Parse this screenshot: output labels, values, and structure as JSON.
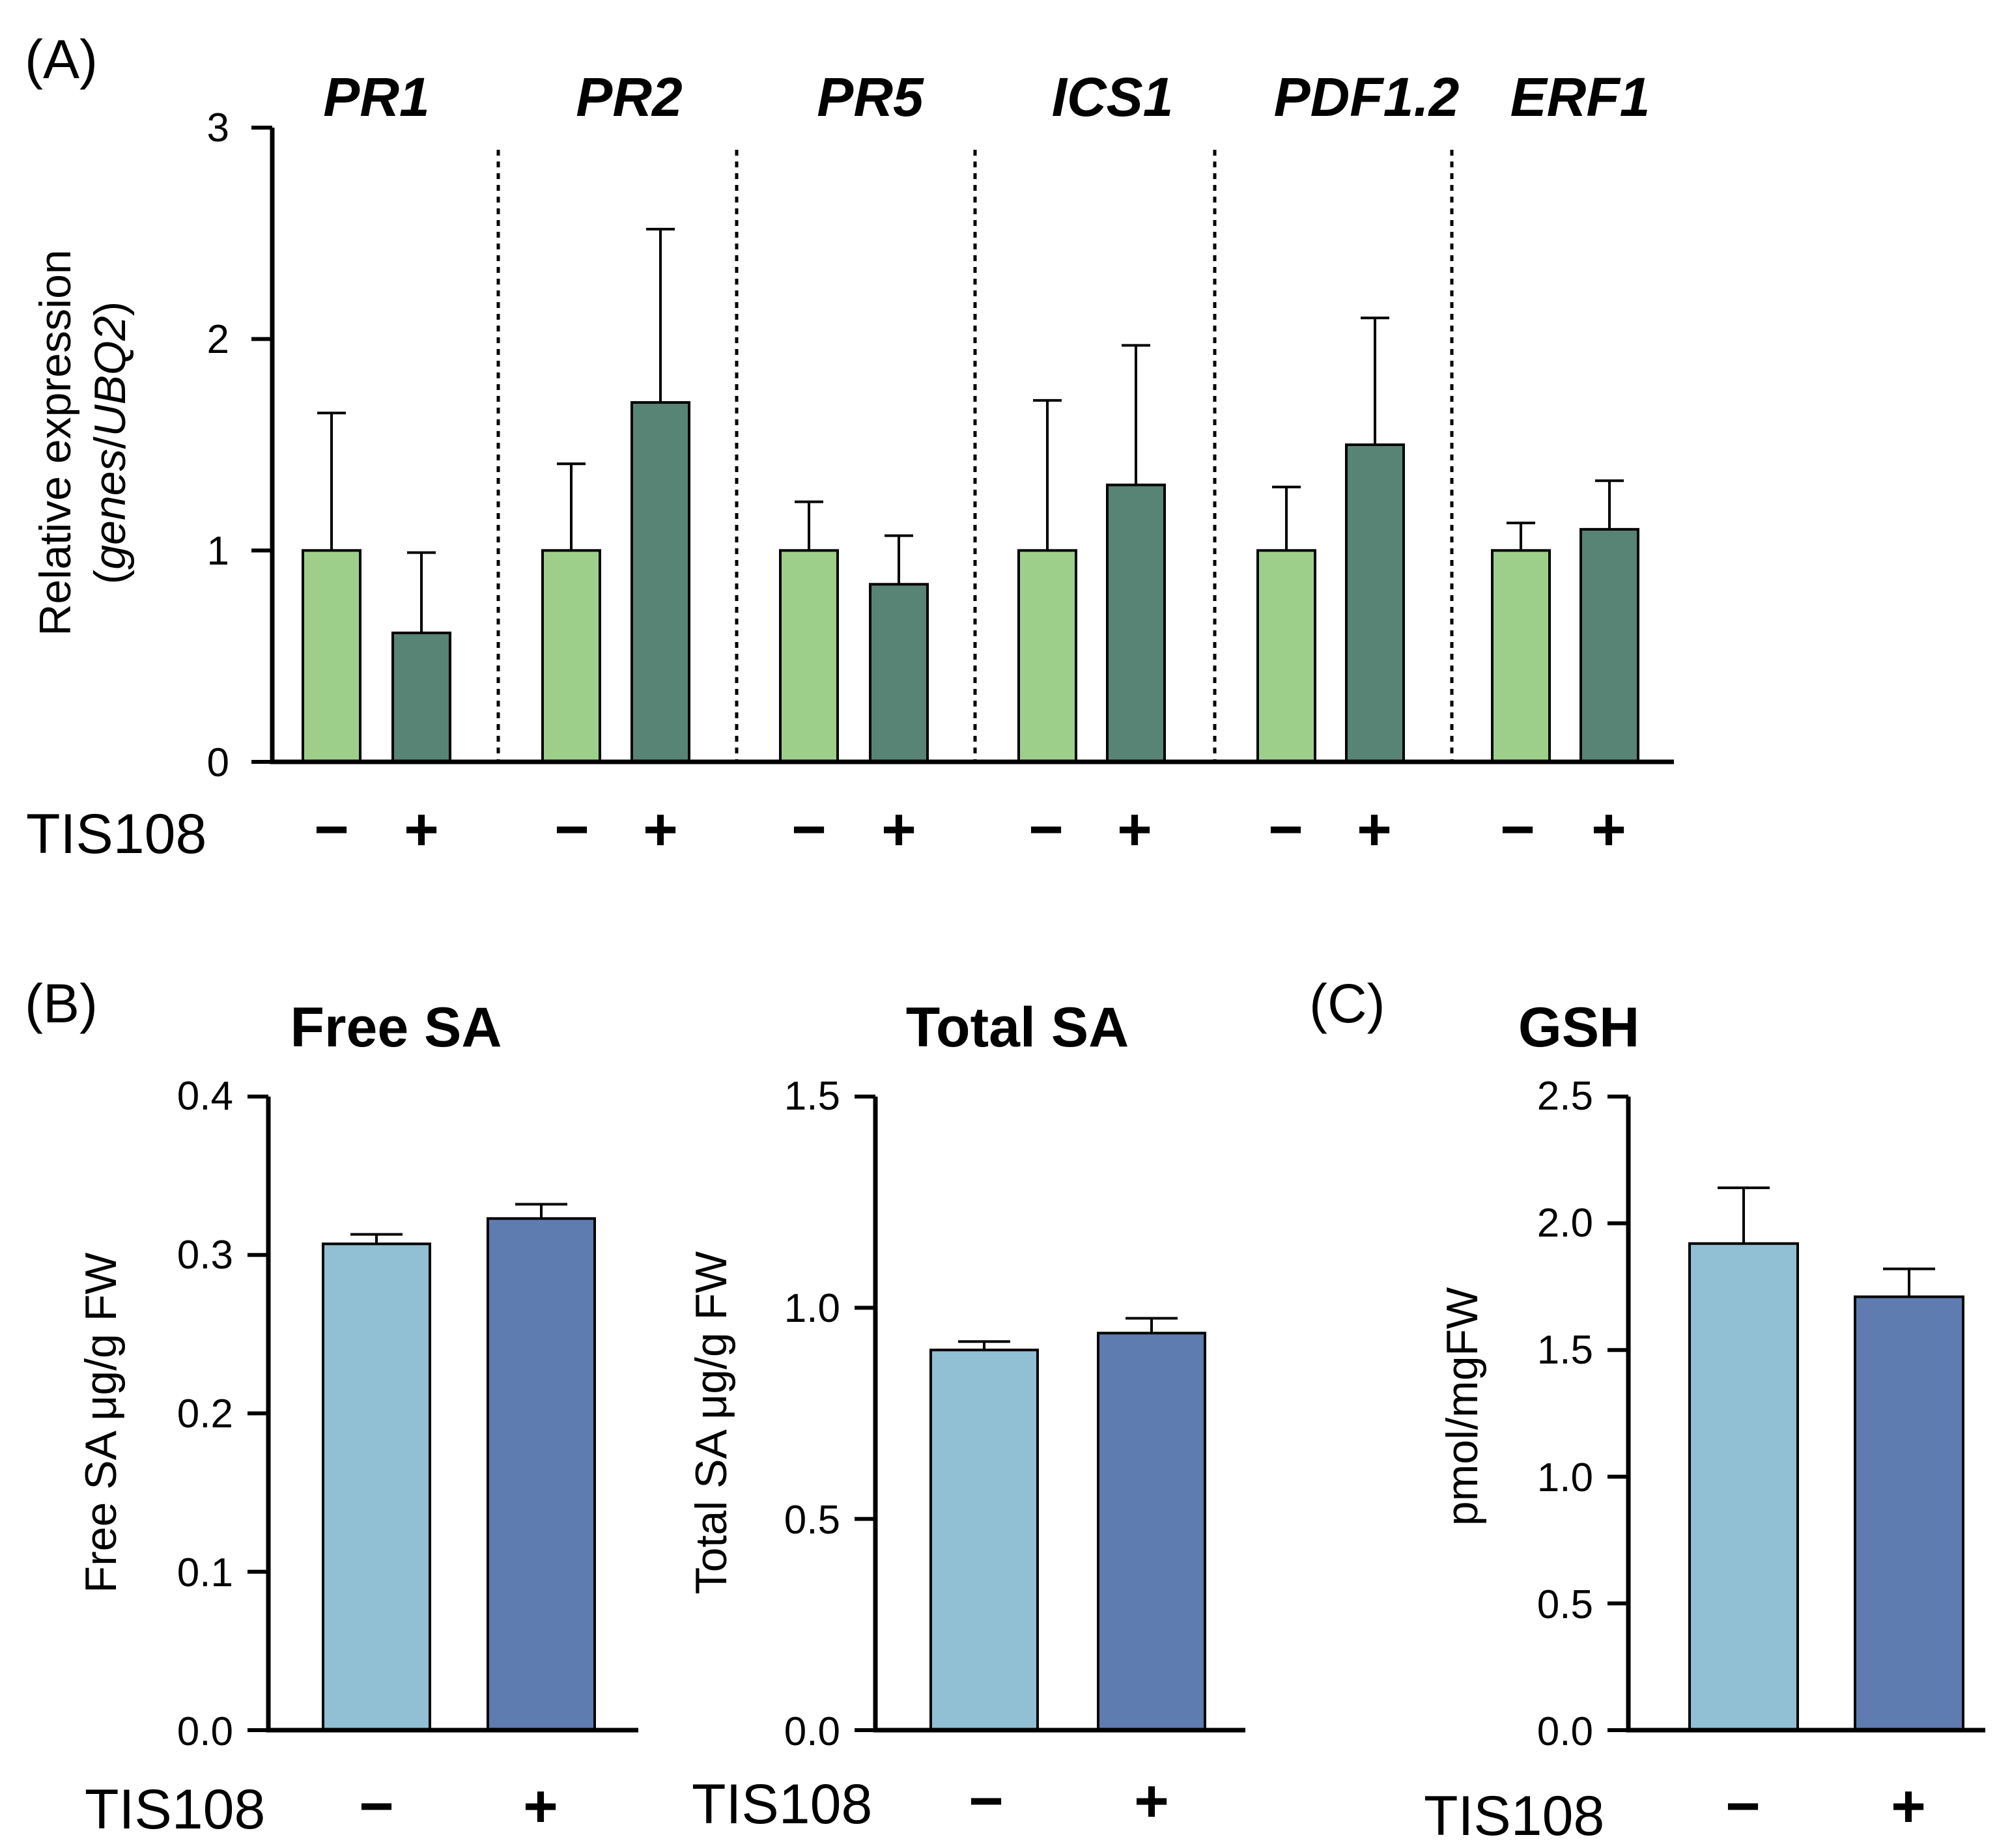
{
  "colors": {
    "light_green": "#9ecf8a",
    "dark_green": "#578474",
    "light_blue": "#91bfd3",
    "dark_blue": "#5e7cb0"
  },
  "chart_data": [
    {
      "panel": "(A)",
      "type": "bar",
      "ylabel_line1": "Relative expression",
      "ylabel_line2_open": "(",
      "ylabel_line2_italic": "genes",
      "ylabel_line2_mid": "/",
      "ylabel_line2_italic2": "UBQ2",
      "ylabel_line2_close": ")",
      "ylim": [
        0,
        3
      ],
      "yticks": [
        "0",
        "1",
        "2",
        "3"
      ],
      "treatment_label": "TIS108",
      "signs": [
        "−",
        "+"
      ],
      "categories": [
        "PR1",
        "PR2",
        "PR5",
        "ICS1",
        "PDF1.2",
        "ERF1"
      ],
      "series": [
        {
          "name": "TIS108 −",
          "values": [
            1.0,
            1.0,
            1.0,
            1.0,
            1.0,
            1.0
          ],
          "errors": [
            0.65,
            0.41,
            0.23,
            0.71,
            0.3,
            0.13
          ]
        },
        {
          "name": "TIS108 +",
          "values": [
            0.61,
            1.7,
            0.84,
            1.31,
            1.5,
            1.1
          ],
          "errors": [
            0.38,
            0.82,
            0.23,
            0.66,
            0.6,
            0.23
          ]
        }
      ]
    },
    {
      "panel": "(B)",
      "type": "bar",
      "title": "Free SA",
      "ylabel": "Free SA μg/g FW",
      "ylim": [
        0,
        0.4
      ],
      "yticks": [
        "0.0",
        "0.1",
        "0.2",
        "0.3",
        "0.4"
      ],
      "treatment_label": "TIS108",
      "categories": [
        "−",
        "+"
      ],
      "values": [
        0.307,
        0.323
      ],
      "errors": [
        0.006,
        0.009
      ]
    },
    {
      "panel": "",
      "type": "bar",
      "title": "Total SA",
      "ylabel": "Total SA μg/g FW",
      "ylim": [
        0,
        1.5
      ],
      "yticks": [
        "0.0",
        "0.5",
        "1.0",
        "1.5"
      ],
      "treatment_label": "TIS108",
      "categories": [
        "−",
        "+"
      ],
      "values": [
        0.9,
        0.94
      ],
      "errors": [
        0.02,
        0.035
      ]
    },
    {
      "panel": "(C)",
      "type": "bar",
      "title": "GSH",
      "ylabel": "pmol/mgFW",
      "ylim": [
        0,
        2.5
      ],
      "yticks": [
        "0.0",
        "0.5",
        "1.0",
        "1.5",
        "2.0",
        "2.5"
      ],
      "treatment_label": "TIS108",
      "categories": [
        "−",
        "+"
      ],
      "values": [
        1.92,
        1.71
      ],
      "errors": [
        0.22,
        0.11
      ]
    }
  ]
}
